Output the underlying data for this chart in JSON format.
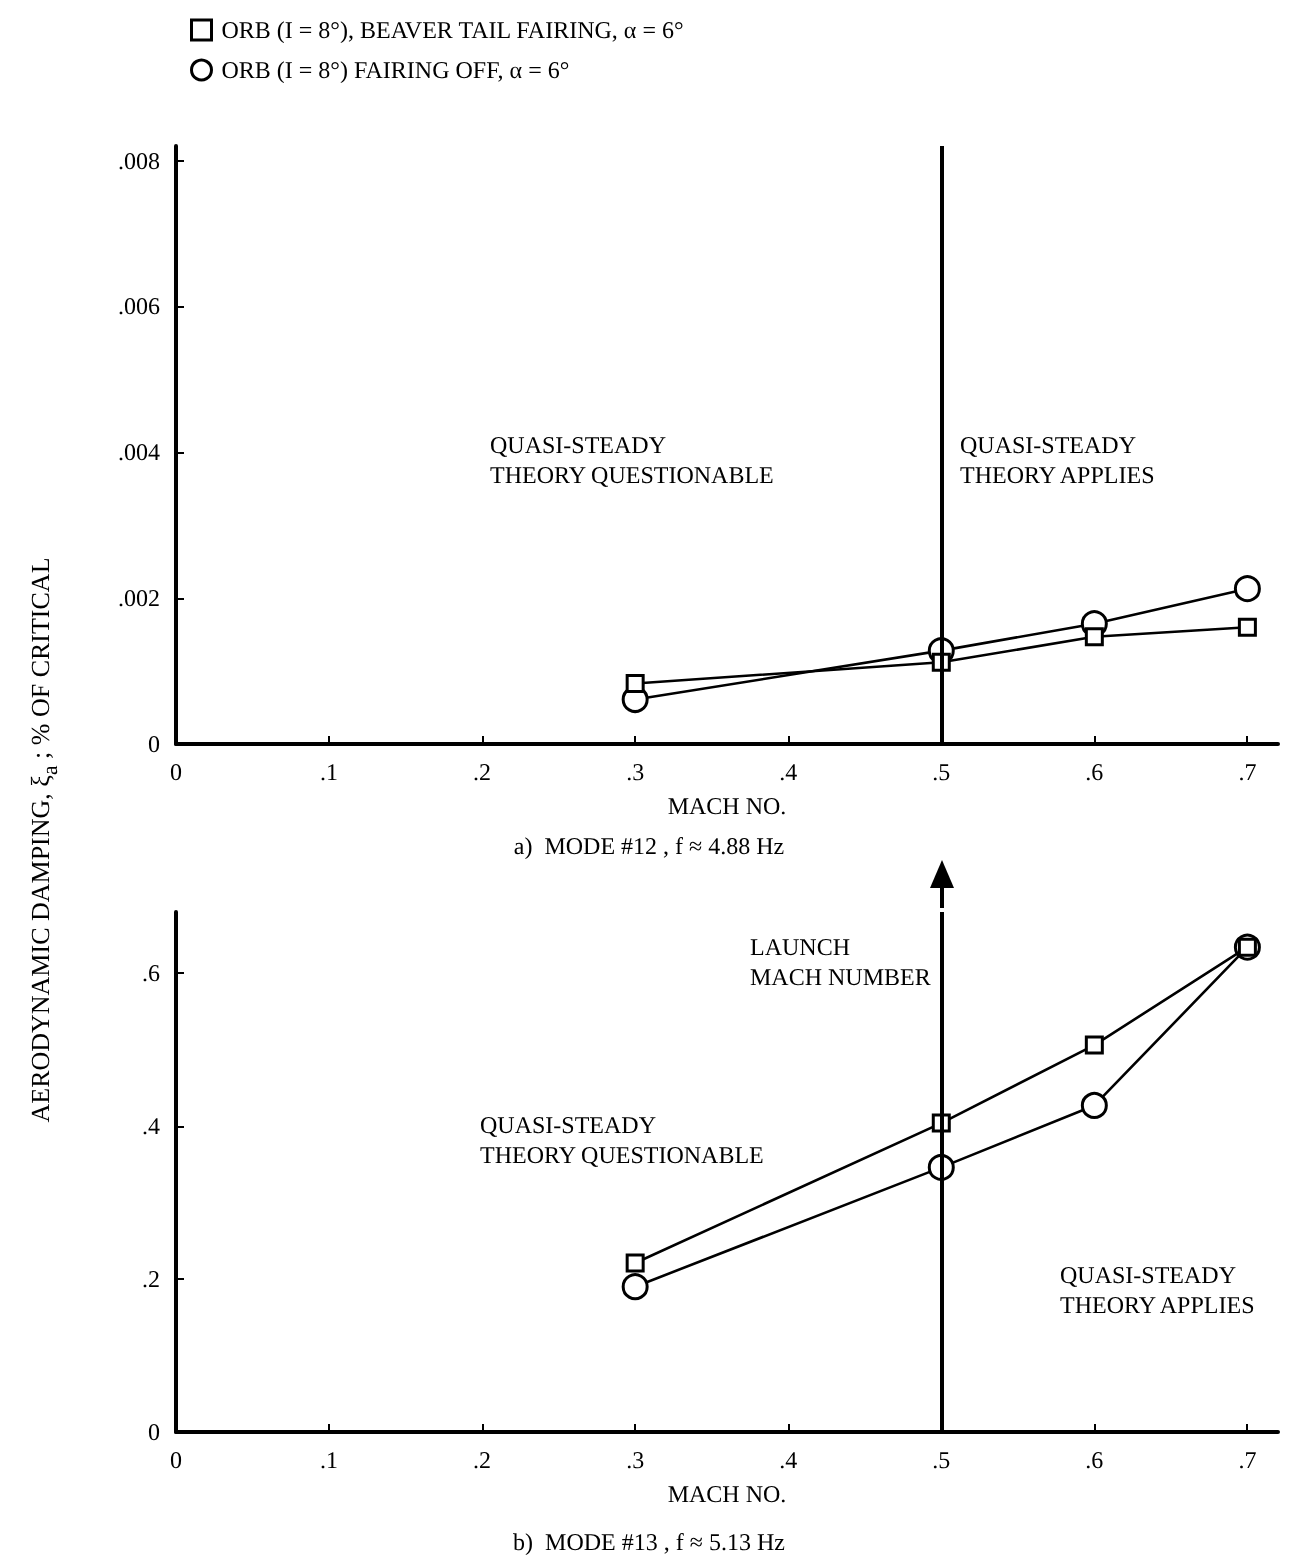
{
  "chart_data": [
    {
      "type": "line",
      "title": "a)  MODE #12 , f ≈ 4.88 Hz",
      "xlabel": "MACH NO.",
      "ylabel": "AERODYNAMIC DAMPING, ξ$_{a}$ ; % OF CRITICAL",
      "x": [
        0.3,
        0.5,
        0.6,
        0.7
      ],
      "series": [
        {
          "name": "ORB (I = 8°), BEAVER TAIL FAIRING, α = 6°",
          "color": "#000000",
          "marker": "square",
          "values": [
            0.00083,
            0.00112,
            0.00147,
            0.0016
          ]
        },
        {
          "name": "ORB (I = 8°) FAIRING OFF, α = 6°",
          "color": "#000000",
          "marker": "circle",
          "values": [
            0.00061,
            0.00128,
            0.00165,
            0.00213
          ]
        }
      ],
      "xlim": [
        0,
        0.72
      ],
      "xticks": [
        {
          "value": 0,
          "label": "0"
        },
        {
          "value": 0.1,
          "label": ".1"
        },
        {
          "value": 0.2,
          "label": ".2"
        },
        {
          "value": 0.3,
          "label": ".3"
        },
        {
          "value": 0.4,
          "label": ".4"
        },
        {
          "value": 0.5,
          "label": ".5"
        },
        {
          "value": 0.6,
          "label": ".6"
        },
        {
          "value": 0.7,
          "label": ".7"
        }
      ],
      "ylim": [
        0,
        0.0082
      ],
      "yticks": [
        {
          "value": 0,
          "label": "0"
        },
        {
          "value": 0.002,
          "label": ".002"
        },
        {
          "value": 0.004,
          "label": ".004"
        },
        {
          "value": 0.006,
          "label": ".006"
        },
        {
          "value": 0.008,
          "label": ".008"
        }
      ],
      "ref_lines": [
        {
          "axis": "x",
          "value": 0.5,
          "color": "#000000"
        }
      ],
      "annotations": [
        "QUASI-STEADY\nTHEORY QUESTIONABLE",
        "QUASI-STEADY\nTHEORY APPLIES"
      ],
      "legend": "top",
      "grid": false,
      "line_style": "solid"
    },
    {
      "type": "line",
      "title": "b)  MODE #13 , f ≈ 5.13 Hz",
      "xlabel": "MACH NO.",
      "x": [
        0.3,
        0.5,
        0.6,
        0.7
      ],
      "series": [
        {
          "color": "#000000",
          "marker": "square",
          "values": [
            0.221,
            0.404,
            0.506,
            0.634
          ]
        },
        {
          "color": "#000000",
          "marker": "circle",
          "values": [
            0.19,
            0.346,
            0.427,
            0.634
          ]
        }
      ],
      "xlim": [
        0,
        0.72
      ],
      "xticks": [
        {
          "value": 0,
          "label": "0"
        },
        {
          "value": 0.1,
          "label": ".1"
        },
        {
          "value": 0.2,
          "label": ".2"
        },
        {
          "value": 0.3,
          "label": ".3"
        },
        {
          "value": 0.4,
          "label": ".4"
        },
        {
          "value": 0.5,
          "label": ".5"
        },
        {
          "value": 0.6,
          "label": ".6"
        },
        {
          "value": 0.7,
          "label": ".7"
        }
      ],
      "ylim": [
        0,
        0.68
      ],
      "yticks": [
        {
          "value": 0,
          "label": "0"
        },
        {
          "value": 0.2,
          "label": ".2"
        },
        {
          "value": 0.4,
          "label": ".4"
        },
        {
          "value": 0.6,
          "label": ".6"
        }
      ],
      "ref_lines": [
        {
          "axis": "x",
          "value": 0.5,
          "color": "#000000"
        }
      ],
      "annotations": [
        "LAUNCH\nMACH NUMBER",
        "QUASI-STEADY\nTHEORY QUESTIONABLE",
        "QUASI-STEADY\nTHEORY APPLIES"
      ],
      "grid": false,
      "line_style": "solid"
    }
  ]
}
